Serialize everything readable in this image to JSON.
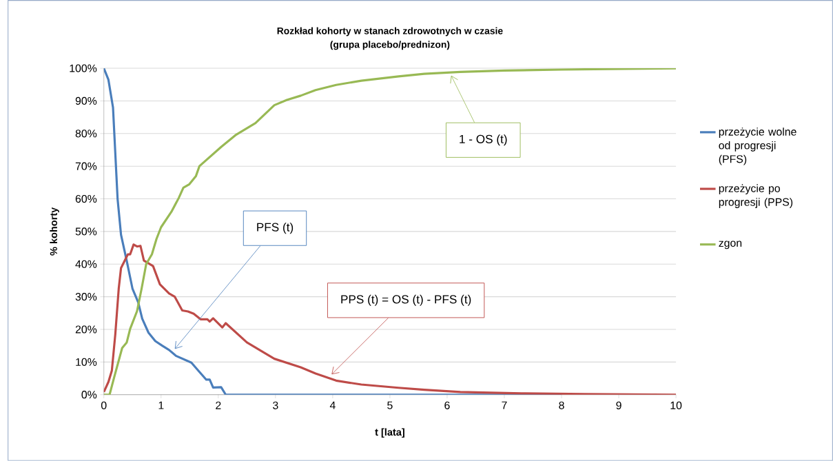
{
  "chart_data": {
    "type": "line",
    "title": "Rozkład  kohorty w stanach zdrowotnych w czasie",
    "subtitle": "(grupa placebo/prednizon)",
    "xlabel": "t [lata]",
    "ylabel": "% kohorty",
    "xlim": [
      0,
      10
    ],
    "ylim": [
      0,
      100
    ],
    "xticks": [
      0,
      1,
      2,
      3,
      4,
      5,
      6,
      7,
      8,
      9,
      10
    ],
    "yticks": [
      {
        "value": 0,
        "label": "0%"
      },
      {
        "value": 10,
        "label": "10%"
      },
      {
        "value": 20,
        "label": "20%"
      },
      {
        "value": 30,
        "label": "30%"
      },
      {
        "value": 40,
        "label": "40%"
      },
      {
        "value": 50,
        "label": "50%"
      },
      {
        "value": 60,
        "label": "60%"
      },
      {
        "value": 70,
        "label": "70%"
      },
      {
        "value": 80,
        "label": "80%"
      },
      {
        "value": 90,
        "label": "90%"
      },
      {
        "value": 100,
        "label": "100%"
      }
    ],
    "grid": "y",
    "legend": "right",
    "series": [
      {
        "name": "przeżycie wolne od progresji (PFS)",
        "color": "#4a7ebb",
        "x": [
          0,
          0.08,
          0.16,
          0.2,
          0.24,
          0.3,
          0.4,
          0.5,
          0.6,
          0.67,
          0.78,
          0.9,
          1.02,
          1.14,
          1.26,
          1.53,
          1.65,
          1.79,
          1.85,
          1.91,
          2.05,
          2.13,
          3,
          4,
          5,
          6,
          7,
          8
        ],
        "values": [
          100,
          96.5,
          88,
          74,
          60,
          49,
          41,
          32.5,
          28.3,
          23.3,
          19,
          16.4,
          15,
          13.7,
          11.9,
          9.8,
          7.4,
          4.6,
          4.6,
          2.2,
          2.3,
          0,
          0,
          0,
          0,
          0,
          0,
          0
        ]
      },
      {
        "name": "przeżycie po progresji (PPS)",
        "color": "#be4b48",
        "x": [
          0,
          0.08,
          0.14,
          0.2,
          0.26,
          0.3,
          0.36,
          0.42,
          0.46,
          0.52,
          0.58,
          0.64,
          0.7,
          0.86,
          0.98,
          1.14,
          1.24,
          1.37,
          1.47,
          1.57,
          1.69,
          1.81,
          1.85,
          1.91,
          2.07,
          2.13,
          2.5,
          2.98,
          3.44,
          3.7,
          4.06,
          4.5,
          5.15,
          5.6,
          6.23,
          7.3,
          8.4,
          10
        ],
        "values": [
          0.8,
          3.9,
          7.4,
          18.5,
          32.5,
          38.8,
          40.9,
          43,
          43,
          46,
          45.4,
          45.6,
          41.1,
          39.4,
          33.8,
          31,
          30,
          25.8,
          25.5,
          24.8,
          23.1,
          23.1,
          22.4,
          23.4,
          20.6,
          21.9,
          16,
          11,
          8.4,
          6.5,
          4.3,
          3.1,
          2.1,
          1.5,
          0.8,
          0.4,
          0.2,
          0
        ]
      },
      {
        "name": "zgon",
        "color": "#98b954",
        "x": [
          0,
          0.1,
          0.18,
          0.32,
          0.4,
          0.46,
          0.58,
          0.66,
          0.74,
          0.84,
          0.92,
          1.0,
          1.18,
          1.31,
          1.39,
          1.49,
          1.61,
          1.67,
          2.05,
          2.3,
          2.65,
          2.98,
          3.2,
          3.44,
          3.7,
          4.06,
          4.5,
          5.15,
          5.6,
          6.23,
          7.0,
          8.0,
          10
        ],
        "values": [
          0,
          0,
          5.3,
          14.3,
          16,
          20.2,
          25.6,
          32.5,
          40,
          43,
          47.7,
          51.3,
          56,
          60.3,
          63.4,
          64.4,
          67,
          70,
          75.9,
          79.5,
          83.2,
          88.7,
          90.3,
          91.6,
          93.3,
          94.9,
          96.2,
          97.5,
          98.3,
          98.9,
          99.3,
          99.6,
          100
        ]
      }
    ],
    "annotations": [
      {
        "text": "PFS (t)",
        "x": 1.24,
        "y": 14
      },
      {
        "text": "PPS (t) = OS (t) - PFS (t)",
        "x": 3.98,
        "y": 6.2
      },
      {
        "text": "1 - OS (t)",
        "x": 6.07,
        "y": 97.8
      }
    ]
  }
}
